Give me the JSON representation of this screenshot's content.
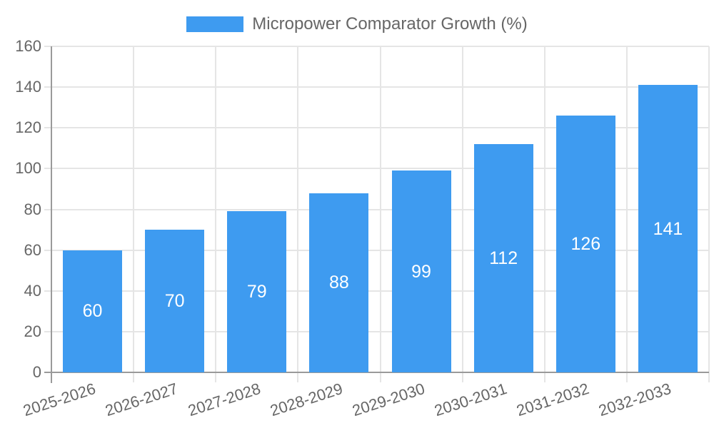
{
  "legend": {
    "label": "Micropower Comparator Growth (%)"
  },
  "colors": {
    "bar": "#3E9BF0",
    "axis": "#9a9a9a",
    "grid": "#e5e5e5",
    "text": "#666666",
    "value_text": "#ffffff",
    "background": "#ffffff"
  },
  "chart_data": {
    "type": "bar",
    "title": "Micropower Comparator Growth (%)",
    "categories": [
      "2025-2026",
      "2026-2027",
      "2027-2028",
      "2028-2029",
      "2029-2030",
      "2030-2031",
      "2031-2032",
      "2032-2033"
    ],
    "values": [
      60,
      70,
      79,
      88,
      99,
      112,
      126,
      141
    ],
    "xlabel": "",
    "ylabel": "",
    "ylim": [
      0,
      160
    ],
    "ytick_step": 20,
    "yticks": [
      0,
      20,
      40,
      60,
      80,
      100,
      120,
      140,
      160
    ],
    "grid": true,
    "legend_position": "top",
    "value_labels": "inside-white",
    "x_label_rotation_deg": -18
  }
}
